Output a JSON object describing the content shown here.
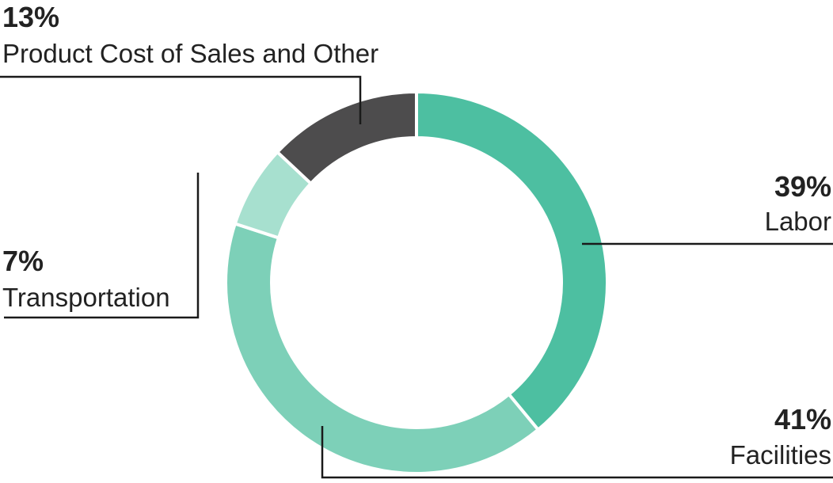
{
  "chart_data": {
    "type": "pie",
    "style": "donut",
    "slices": [
      {
        "label": "Labor",
        "value": 39,
        "value_label": "39%",
        "color": "#4dbfa1"
      },
      {
        "label": "Facilities",
        "value": 41,
        "value_label": "41%",
        "color": "#7dd0b8"
      },
      {
        "label": "Transportation",
        "value": 7,
        "value_label": "7%",
        "color": "#a7e0cf"
      },
      {
        "label": "Product Cost of Sales and Other",
        "value": 13,
        "value_label": "13%",
        "color": "#4d4c4d"
      }
    ],
    "start": "12 o'clock",
    "direction": "clockwise",
    "separator_color": "#ffffff",
    "leader_line_color": "#1a1a1a"
  }
}
